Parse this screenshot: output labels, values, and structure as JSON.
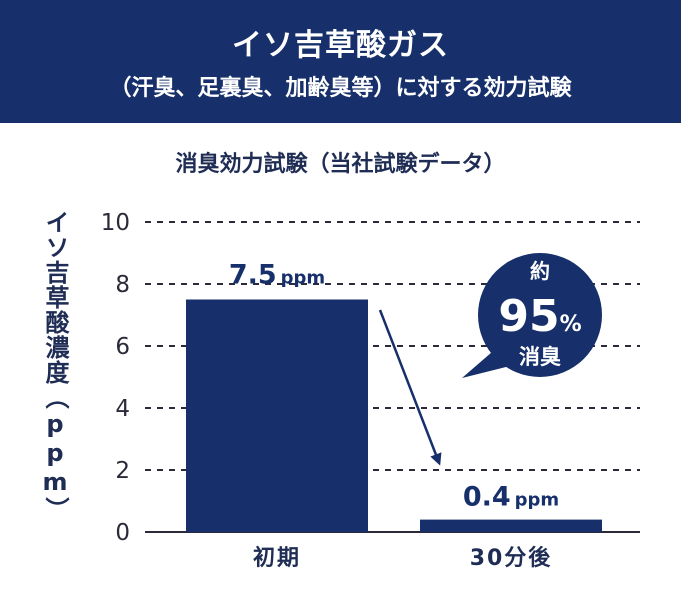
{
  "header": {
    "title": "イソ吉草酸ガス",
    "subtitle": "（汗臭、足裏臭、加齢臭等）に対する効力試験"
  },
  "chart_data": {
    "type": "bar",
    "title": "消臭効力試験（当社試験データ）",
    "ylabel": "イソ吉草酸濃度（ppm）",
    "xlabel": "",
    "categories": [
      "初期",
      "30分後"
    ],
    "values": [
      7.5,
      0.4
    ],
    "data_labels": [
      {
        "value": "7.5",
        "unit": "ppm"
      },
      {
        "value": "0.4",
        "unit": "ppm"
      }
    ],
    "ylim": [
      0,
      10
    ],
    "yticks": [
      0,
      2,
      4,
      6,
      8,
      10
    ],
    "grid": "dashed horizontal",
    "bar_color": "#17306b",
    "annotation": {
      "line1": "約",
      "number": "95",
      "unit": "%",
      "line3": "消臭"
    }
  }
}
